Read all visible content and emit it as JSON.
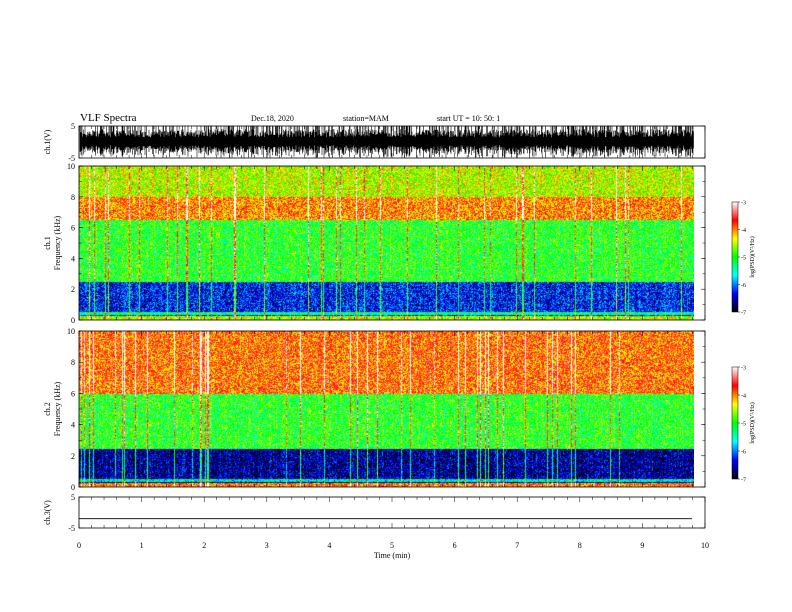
{
  "header": {
    "title": "VLF Spectra",
    "date": "Dec.18, 2020",
    "station": "station=MAM",
    "start_ut": "start  UT  =   10: 50: 1"
  },
  "chart_data": [
    {
      "type": "line",
      "panel": "ch1-waveform",
      "ylabel": "ch.1(V)",
      "ylim": [
        -5,
        5
      ],
      "yticks": [
        "5",
        "-5"
      ],
      "series": [
        {
          "description": "dense noisy waveform saturating -5..5 V"
        }
      ]
    },
    {
      "type": "heatmap",
      "panel": "ch1-spectrogram",
      "ylabel_line1": "ch.1",
      "ylabel_line2": "Frequency  (kHz)",
      "ylim": [
        0,
        10
      ],
      "yticks": [
        "0",
        "2",
        "4",
        "6",
        "8",
        "10"
      ],
      "colorbar": {
        "label": "log(PSD)(V²/Hz)",
        "range": [
          -7,
          -3
        ],
        "ticks": [
          "-3",
          "-4",
          "-5",
          "-6",
          "-7"
        ],
        "colormap": [
          "#000000",
          "#0000ff",
          "#00ffff",
          "#00ff00",
          "#ffff00",
          "#ff0000",
          "#ffffff"
        ]
      },
      "features": [
        {
          "band_khz": [
            0.3,
            2.5
          ],
          "log_psd": -6.3
        },
        {
          "band_khz": [
            2.5,
            6.5
          ],
          "log_psd": -5.0
        },
        {
          "band_khz": [
            6.5,
            8.0
          ],
          "log_psd": -4.0
        },
        {
          "band_khz": [
            8.0,
            10.0
          ],
          "log_psd": -4.5
        }
      ]
    },
    {
      "type": "heatmap",
      "panel": "ch2-spectrogram",
      "ylabel_line1": "ch.2",
      "ylabel_line2": "Frequency  (kHz)",
      "ylim": [
        0,
        10
      ],
      "yticks": [
        "0",
        "2",
        "4",
        "6",
        "8",
        "10"
      ],
      "colorbar": {
        "label": "log(PSD)(V²/Hz)",
        "range": [
          -7,
          -3
        ],
        "ticks": [
          "-3",
          "-4",
          "-5",
          "-6",
          "-7"
        ],
        "colormap": [
          "#000000",
          "#0000ff",
          "#00ffff",
          "#00ff00",
          "#ffff00",
          "#ff0000",
          "#ffffff"
        ]
      },
      "features": [
        {
          "band_khz": [
            0.3,
            2.5
          ],
          "log_psd": -6.6
        },
        {
          "band_khz": [
            2.5,
            6.0
          ],
          "log_psd": -5.0
        },
        {
          "band_khz": [
            6.0,
            10.0
          ],
          "log_psd": -3.9
        }
      ]
    },
    {
      "type": "line",
      "panel": "ch3-waveform",
      "ylabel": "ch.3(V)",
      "ylim": [
        -5,
        5
      ],
      "yticks": [
        "5",
        "-5"
      ],
      "series": [
        {
          "constant_value": -2
        }
      ]
    }
  ],
  "xaxis": {
    "label": "Time  (min)",
    "range": [
      0,
      10
    ],
    "data_end": 9.82,
    "ticks": [
      "0",
      "1",
      "2",
      "3",
      "4",
      "5",
      "6",
      "7",
      "8",
      "9",
      "10"
    ]
  }
}
